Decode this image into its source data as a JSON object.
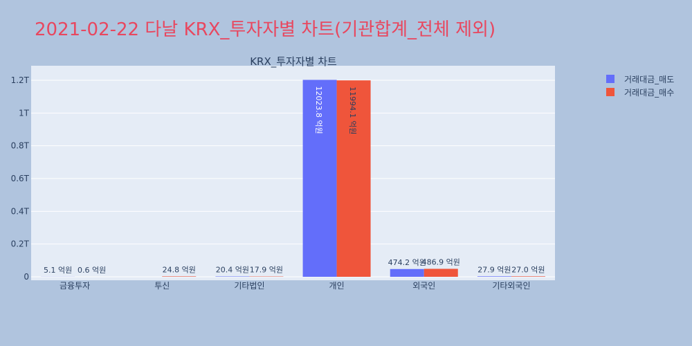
{
  "page_title": "2021-02-22 다날 KRX_투자자별 차트(기관합계_전체 제외)",
  "chart_data": {
    "type": "bar",
    "title": "KRX_투자자별 차트",
    "categories": [
      "금융투자",
      "투신",
      "기타법인",
      "개인",
      "외국인",
      "기타외국인"
    ],
    "series": [
      {
        "name": "거래대금_매도",
        "color": "#636efa",
        "values": [
          510000000,
          0,
          2040000000,
          1202380000000,
          47420000000,
          2790000000
        ],
        "labels": [
          "5.1 억원",
          "",
          "20.4 억원",
          "12023.8 억원",
          "474.2 억원",
          "27.9 억원"
        ]
      },
      {
        "name": "거래대금_매수",
        "color": "#ef553b",
        "values": [
          60000000,
          2480000000,
          1790000000,
          1199410000000,
          48690000000,
          2700000000
        ],
        "labels": [
          "0.6 억원",
          "24.8 억원",
          "17.9 억원",
          "11994.1 억원",
          "486.9 억원",
          "27.0 억원"
        ]
      }
    ],
    "ylim": [
      0,
      1270000000000
    ],
    "yticks": [
      0,
      200000000000,
      400000000000,
      600000000000,
      800000000000,
      1000000000000,
      1200000000000
    ],
    "ytick_labels": [
      "0",
      "0.2T",
      "0.4T",
      "0.6T",
      "0.8T",
      "1T",
      "1.2T"
    ],
    "grid": true,
    "legend_position": "top-right",
    "plot_bg": "#e5ecf6"
  }
}
